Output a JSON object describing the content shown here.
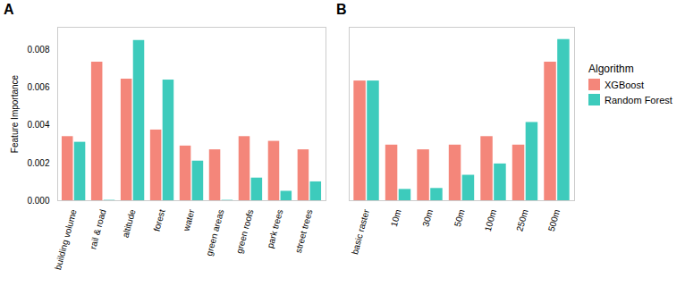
{
  "chart_data": [
    {
      "type": "bar",
      "title": "A",
      "categories": [
        "building volume",
        "rail & road",
        "altitude",
        "forest",
        "water",
        "green areas",
        "green roofs",
        "park trees",
        "street trees"
      ],
      "series": [
        {
          "name": "XGBoost",
          "color": "#F4867A",
          "values": [
            0.0034,
            0.00735,
            0.00645,
            0.00375,
            0.0029,
            0.0027,
            0.0034,
            0.00315,
            0.0027
          ]
        },
        {
          "name": "Random Forest",
          "color": "#3DCBBC",
          "values": [
            0.0031,
            2e-05,
            0.0085,
            0.0064,
            0.0021,
            2e-05,
            0.0012,
            0.0005,
            0.001
          ]
        }
      ],
      "ylabel": "Feature Importance",
      "ylim": [
        0,
        0.0092
      ],
      "yticks": [
        {
          "value": 0.0,
          "label": "0.000"
        },
        {
          "value": 0.002,
          "label": "0.002"
        },
        {
          "value": 0.004,
          "label": "0.004"
        },
        {
          "value": 0.006,
          "label": "0.006"
        },
        {
          "value": 0.008,
          "label": "0.008"
        }
      ],
      "grid": false
    },
    {
      "type": "bar",
      "title": "B",
      "categories": [
        "basic raster",
        "10m",
        "30m",
        "50m",
        "100m",
        "250m",
        "500m"
      ],
      "series": [
        {
          "name": "XGBoost",
          "color": "#F4867A",
          "values": [
            0.00635,
            0.00295,
            0.0027,
            0.00295,
            0.0034,
            0.00295,
            0.00735
          ]
        },
        {
          "name": "Random Forest",
          "color": "#3DCBBC",
          "values": [
            0.00635,
            0.0006,
            0.00065,
            0.00135,
            0.00195,
            0.00415,
            0.00855
          ]
        }
      ],
      "ylim": [
        0,
        0.0092
      ],
      "yticks": [
        {
          "value": 0.0,
          "label": "0.000"
        },
        {
          "value": 0.002,
          "label": "0.002"
        },
        {
          "value": 0.004,
          "label": "0.004"
        },
        {
          "value": 0.006,
          "label": "0.006"
        },
        {
          "value": 0.008,
          "label": "0.008"
        }
      ],
      "grid": false,
      "tick_labels": "x",
      "legend": "right",
      "legend_title": "Algorithm"
    }
  ]
}
